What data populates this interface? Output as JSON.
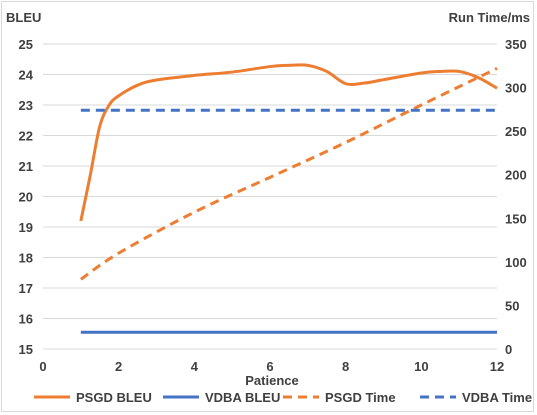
{
  "chart_data": {
    "type": "line",
    "xlabel": "Patience",
    "y_left_label": "BLEU",
    "y_right_label": "Run Time/ms",
    "x_ticks": [
      0,
      2,
      4,
      6,
      8,
      10,
      12
    ],
    "y_left_ticks": [
      15,
      16,
      17,
      18,
      19,
      20,
      21,
      22,
      23,
      24,
      25
    ],
    "y_right_ticks": [
      0,
      50,
      100,
      150,
      200,
      250,
      300,
      350
    ],
    "xlim": [
      0,
      12
    ],
    "ylim_left": [
      15,
      25
    ],
    "ylim_right": [
      0,
      350
    ],
    "grid": "horizontal",
    "legend_position": "bottom",
    "series": [
      {
        "name": "PSGD BLEU",
        "axis": "left",
        "style": "solid",
        "color": "#ED7D31",
        "x": [
          1,
          1.25,
          1.5,
          1.75,
          2,
          2.5,
          3,
          4,
          5,
          6,
          6.5,
          7,
          7.5,
          8,
          8.5,
          9,
          10,
          10.5,
          11,
          11.5,
          12
        ],
        "y": [
          19.2,
          20.7,
          22.3,
          23.0,
          23.3,
          23.65,
          23.82,
          23.97,
          24.08,
          24.26,
          24.3,
          24.3,
          24.1,
          23.7,
          23.72,
          23.83,
          24.05,
          24.1,
          24.1,
          23.9,
          23.55
        ]
      },
      {
        "name": "VDBA BLEU",
        "axis": "left",
        "style": "solid",
        "color": "#4472C4",
        "x": [
          1,
          12
        ],
        "y": [
          15.55,
          15.55
        ]
      },
      {
        "name": "PSGD Time",
        "axis": "right",
        "style": "dashed",
        "color": "#ED7D31",
        "x": [
          1,
          2,
          4,
          6,
          8,
          10,
          12
        ],
        "y": [
          80,
          110,
          157,
          197,
          237,
          280,
          322
        ]
      },
      {
        "name": "VDBA Time",
        "axis": "right",
        "style": "dashed",
        "color": "#4472C4",
        "x": [
          1,
          12
        ],
        "y": [
          274,
          274
        ]
      }
    ]
  }
}
